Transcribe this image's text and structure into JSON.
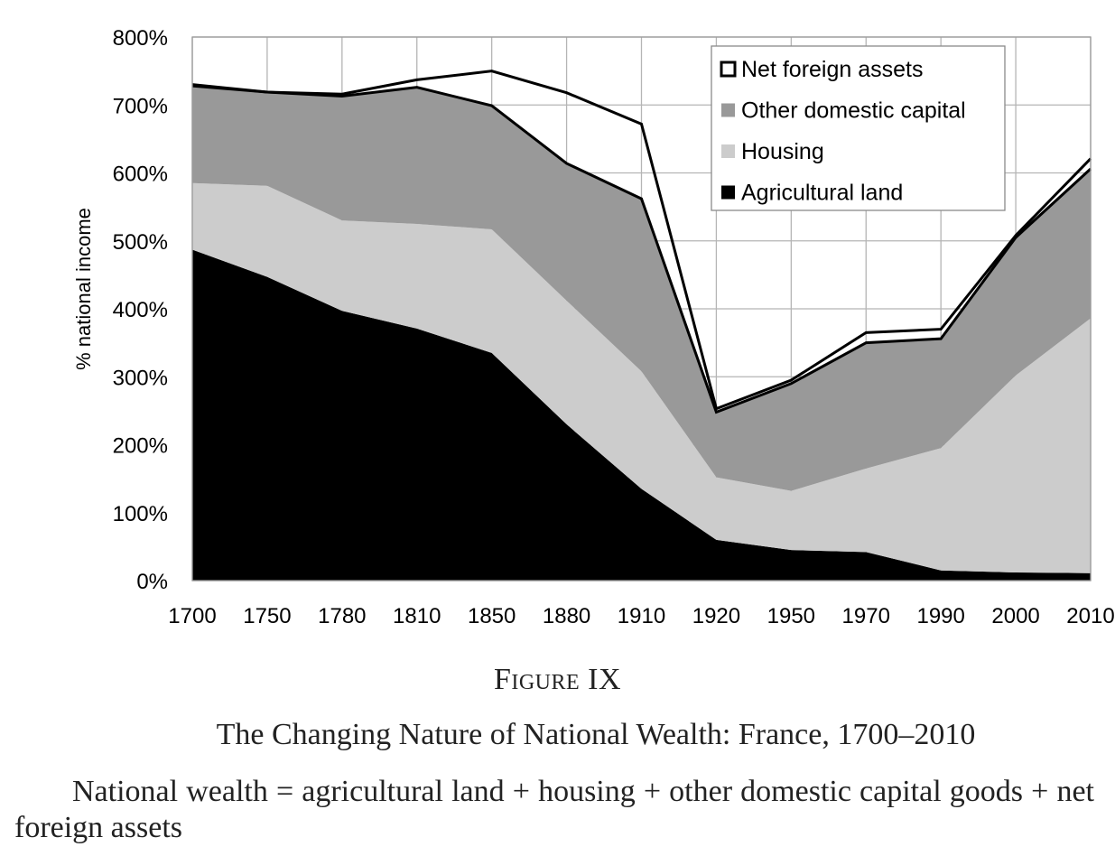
{
  "chart_data": {
    "type": "area",
    "stacked": true,
    "ylabel": "% national income",
    "xlabel": "",
    "x": [
      "1700",
      "1750",
      "1780",
      "1810",
      "1850",
      "1880",
      "1910",
      "1920",
      "1950",
      "1970",
      "1990",
      "2000",
      "2010"
    ],
    "ylim": [
      0,
      800
    ],
    "y_ticks": [
      "0%",
      "100%",
      "200%",
      "300%",
      "400%",
      "500%",
      "600%",
      "700%",
      "800%"
    ],
    "grid": true,
    "legend_position": "top-right",
    "series": [
      {
        "name": "Agricultural land",
        "color": "#000000",
        "values": [
          487,
          447,
          397,
          371,
          335,
          230,
          135,
          60,
          45,
          42,
          15,
          12,
          11
        ]
      },
      {
        "name": "Housing",
        "color": "#cccccc",
        "values": [
          98,
          134,
          133,
          154,
          182,
          182,
          173,
          92,
          87,
          123,
          180,
          290,
          375
        ]
      },
      {
        "name": "Other domestic capital",
        "color": "#999999",
        "values": [
          145,
          138,
          183,
          201,
          182,
          202,
          254,
          96,
          158,
          185,
          161,
          203,
          220
        ]
      },
      {
        "name": "Net foreign assets",
        "color": "#ffffff",
        "values": [
          -2,
          0,
          3,
          11,
          51,
          104,
          110,
          5,
          5,
          15,
          14,
          3,
          15
        ]
      }
    ],
    "legend_order": [
      "Net foreign assets",
      "Other domestic capital",
      "Housing",
      "Agricultural land"
    ]
  },
  "caption": {
    "figure_label": "Figure IX",
    "title": "The Changing Nature of National Wealth: France, 1700–2010",
    "note": "National wealth = agricultural land + housing + other domestic capital goods + net foreign assets"
  }
}
